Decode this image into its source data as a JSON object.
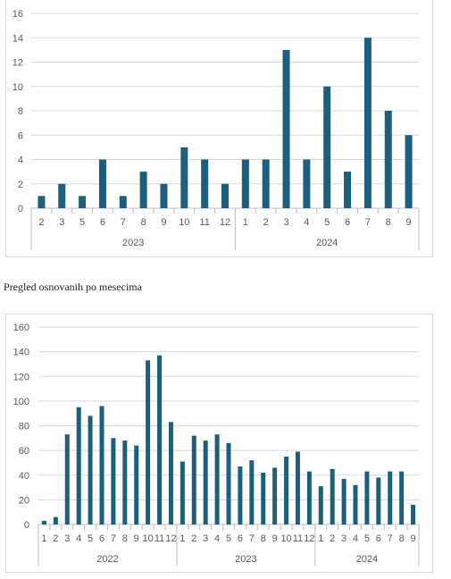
{
  "caption": "Pregled osnovanih po mesecima",
  "colors": {
    "bar": "#1c5f7a",
    "grid": "#d9d9d9",
    "axis": "#bfbfbf",
    "text": "#595959"
  },
  "chart_data": [
    {
      "type": "bar",
      "title": "",
      "ylim": [
        0,
        16
      ],
      "yticks": [
        0,
        2,
        4,
        6,
        8,
        10,
        12,
        14,
        16
      ],
      "grid": true,
      "categories": [
        "2",
        "3",
        "5",
        "6",
        "7",
        "8",
        "9",
        "10",
        "11",
        "12",
        "1",
        "2",
        "3",
        "4",
        "5",
        "6",
        "7",
        "8",
        "9"
      ],
      "groups": [
        {
          "label": "2023",
          "count": 10
        },
        {
          "label": "2024",
          "count": 9
        }
      ],
      "values": [
        1,
        2,
        1,
        4,
        1,
        3,
        2,
        5,
        4,
        2,
        4,
        4,
        13,
        4,
        10,
        3,
        14,
        8,
        6
      ]
    },
    {
      "type": "bar",
      "title": "",
      "ylim": [
        0,
        160
      ],
      "yticks": [
        0,
        20,
        40,
        60,
        80,
        100,
        120,
        140,
        160
      ],
      "grid": true,
      "categories": [
        "1",
        "2",
        "3",
        "4",
        "5",
        "6",
        "7",
        "8",
        "9",
        "10",
        "11",
        "12",
        "1",
        "2",
        "3",
        "4",
        "5",
        "6",
        "7",
        "8",
        "9",
        "10",
        "11",
        "12",
        "1",
        "2",
        "3",
        "4",
        "5",
        "6",
        "7",
        "8",
        "9"
      ],
      "groups": [
        {
          "label": "2022",
          "count": 12
        },
        {
          "label": "2023",
          "count": 12
        },
        {
          "label": "2024",
          "count": 9
        }
      ],
      "values": [
        3,
        6,
        73,
        95,
        88,
        96,
        70,
        68,
        64,
        133,
        137,
        83,
        51,
        72,
        68,
        73,
        66,
        47,
        52,
        42,
        46,
        55,
        59,
        43,
        31,
        45,
        37,
        32,
        43,
        38,
        43,
        43,
        16
      ]
    }
  ]
}
